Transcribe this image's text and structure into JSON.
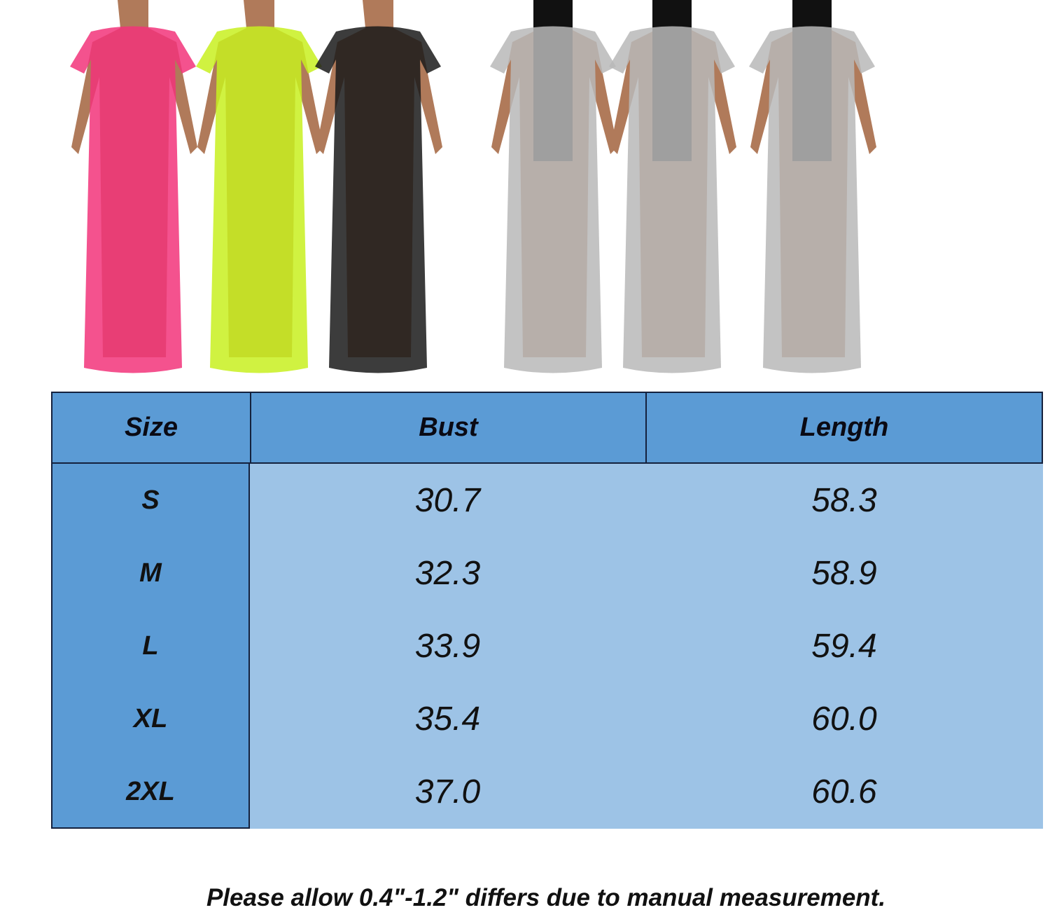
{
  "product_photos": {
    "dress_colors": [
      "#f2347a",
      "#c8f020",
      "#1a1a1a",
      "#b8b8b8",
      "#b8b8b8",
      "#b8b8b8"
    ]
  },
  "size_chart": {
    "headers": [
      "Size",
      "Bust",
      "Length"
    ],
    "rows": [
      {
        "size": "S",
        "bust": "30.7",
        "length": "58.3"
      },
      {
        "size": "M",
        "bust": "32.3",
        "length": "58.9"
      },
      {
        "size": "L",
        "bust": "33.9",
        "length": "59.4"
      },
      {
        "size": "XL",
        "bust": "35.4",
        "length": "60.0"
      },
      {
        "size": "2XL",
        "bust": "37.0",
        "length": "60.6"
      }
    ],
    "colors": {
      "header": "#5b9bd5",
      "body": "#9dc3e6",
      "border": "#14213d"
    }
  },
  "note": "Please allow 0.4\"-1.2\" differs due to manual measurement."
}
